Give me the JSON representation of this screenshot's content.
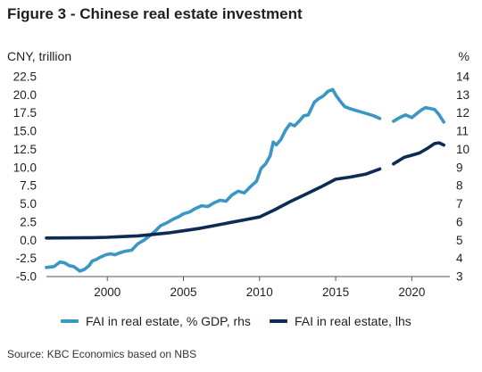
{
  "title": "Figure 3 - Chinese real estate investment",
  "source": "Source: KBC Economics based on NBS",
  "chart_data": {
    "type": "line",
    "left_axis_label": "CNY, trillion",
    "right_axis_label": "%",
    "left_ylim": [
      -5.0,
      22.5
    ],
    "left_ticks": [
      "22.5",
      "20.0",
      "17.5",
      "15.0",
      "12.5",
      "10.0",
      "7.5",
      "5.0",
      "2.5",
      "0.0",
      "-2.5",
      "-5.0"
    ],
    "right_ylim": [
      3,
      14
    ],
    "right_ticks": [
      "14",
      "13",
      "12",
      "11",
      "10",
      "9",
      "8",
      "7",
      "6",
      "5",
      "4",
      "3"
    ],
    "x_ticks": [
      "2000",
      "2005",
      "2010",
      "2015",
      "2020"
    ],
    "x_range": [
      1996.0,
      2022.5
    ],
    "grid": false,
    "legend_position": "bottom",
    "colors": {
      "gdp": "#3a96c3",
      "level": "#0c2b55"
    },
    "series": [
      {
        "name": "FAI in real estate, % GDP, rhs",
        "axis": "right",
        "points": [
          [
            1996.0,
            3.5
          ],
          [
            1996.5,
            3.55
          ],
          [
            1996.9,
            3.8
          ],
          [
            1997.2,
            3.75
          ],
          [
            1997.5,
            3.6
          ],
          [
            1997.8,
            3.55
          ],
          [
            1998.2,
            3.3
          ],
          [
            1998.5,
            3.4
          ],
          [
            1998.8,
            3.6
          ],
          [
            1999.0,
            3.85
          ],
          [
            1999.3,
            3.95
          ],
          [
            1999.5,
            4.05
          ],
          [
            1999.9,
            4.2
          ],
          [
            2000.2,
            4.25
          ],
          [
            2000.5,
            4.2
          ],
          [
            2000.8,
            4.3
          ],
          [
            2001.2,
            4.4
          ],
          [
            2001.6,
            4.45
          ],
          [
            2002.0,
            4.8
          ],
          [
            2002.4,
            5.0
          ],
          [
            2002.8,
            5.25
          ],
          [
            2003.2,
            5.55
          ],
          [
            2003.5,
            5.8
          ],
          [
            2003.9,
            5.95
          ],
          [
            2004.3,
            6.15
          ],
          [
            2004.7,
            6.3
          ],
          [
            2005.0,
            6.45
          ],
          [
            2005.4,
            6.55
          ],
          [
            2005.8,
            6.75
          ],
          [
            2006.2,
            6.9
          ],
          [
            2006.6,
            6.85
          ],
          [
            2007.0,
            7.05
          ],
          [
            2007.4,
            7.2
          ],
          [
            2007.8,
            7.15
          ],
          [
            2008.2,
            7.5
          ],
          [
            2008.6,
            7.7
          ],
          [
            2009.0,
            7.6
          ],
          [
            2009.4,
            7.95
          ],
          [
            2009.8,
            8.25
          ],
          [
            2010.1,
            8.95
          ],
          [
            2010.4,
            9.2
          ],
          [
            2010.7,
            9.65
          ],
          [
            2010.9,
            10.4
          ],
          [
            2011.1,
            10.25
          ],
          [
            2011.4,
            10.55
          ],
          [
            2011.7,
            11.05
          ],
          [
            2012.0,
            11.4
          ],
          [
            2012.3,
            11.3
          ],
          [
            2012.6,
            11.55
          ],
          [
            2012.9,
            11.85
          ],
          [
            2013.2,
            11.9
          ],
          [
            2013.6,
            12.6
          ],
          [
            2013.9,
            12.8
          ],
          [
            2014.2,
            12.95
          ],
          [
            2014.5,
            13.2
          ],
          [
            2014.8,
            13.3
          ],
          [
            2015.0,
            13.0
          ],
          [
            2015.3,
            12.65
          ],
          [
            2015.6,
            12.35
          ],
          [
            2015.9,
            12.25
          ],
          [
            2016.3,
            12.15
          ],
          [
            2016.7,
            12.05
          ],
          [
            2017.1,
            11.95
          ],
          [
            2017.5,
            11.85
          ],
          [
            2017.9,
            11.7
          ]
        ],
        "points_after_gap": [
          [
            2018.8,
            11.55
          ],
          [
            2019.2,
            11.75
          ],
          [
            2019.6,
            11.9
          ],
          [
            2020.0,
            11.75
          ],
          [
            2020.3,
            11.95
          ],
          [
            2020.6,
            12.15
          ],
          [
            2020.9,
            12.3
          ],
          [
            2021.2,
            12.25
          ],
          [
            2021.5,
            12.2
          ],
          [
            2021.8,
            11.9
          ],
          [
            2022.1,
            11.5
          ]
        ]
      },
      {
        "name": "FAI in real estate, lhs",
        "axis": "left",
        "points": [
          [
            1996.0,
            0.3
          ],
          [
            1998.0,
            0.33
          ],
          [
            1999.0,
            0.35
          ],
          [
            2000.0,
            0.4
          ],
          [
            2001.0,
            0.5
          ],
          [
            2002.0,
            0.6
          ],
          [
            2003.0,
            0.8
          ],
          [
            2004.0,
            1.0
          ],
          [
            2005.0,
            1.3
          ],
          [
            2006.0,
            1.6
          ],
          [
            2007.0,
            2.0
          ],
          [
            2008.0,
            2.4
          ],
          [
            2009.0,
            2.8
          ],
          [
            2010.0,
            3.2
          ],
          [
            2011.0,
            4.2
          ],
          [
            2012.0,
            5.3
          ],
          [
            2013.0,
            6.3
          ],
          [
            2014.0,
            7.3
          ],
          [
            2015.0,
            8.4
          ],
          [
            2016.0,
            8.7
          ],
          [
            2017.0,
            9.1
          ],
          [
            2017.9,
            9.8
          ]
        ],
        "points_after_gap": [
          [
            2018.8,
            10.5
          ],
          [
            2019.5,
            11.4
          ],
          [
            2020.0,
            11.7
          ],
          [
            2020.5,
            12.0
          ],
          [
            2021.0,
            12.6
          ],
          [
            2021.5,
            13.3
          ],
          [
            2021.8,
            13.4
          ],
          [
            2022.1,
            13.1
          ]
        ]
      }
    ]
  }
}
